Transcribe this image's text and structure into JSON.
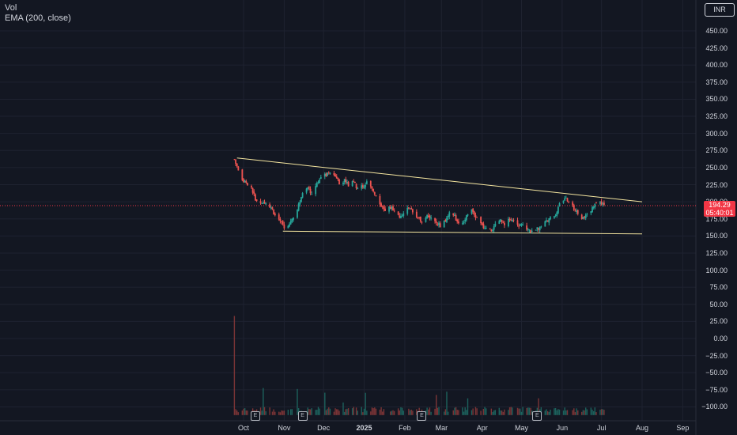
{
  "legend": {
    "volume": "Vol",
    "ema": "EMA (200, close)"
  },
  "currency": "INR",
  "price_badge": {
    "price": "194.29",
    "countdown": "05:40:01"
  },
  "colors": {
    "background": "#131722",
    "up": "#26a69a",
    "down": "#ef5350",
    "trendline": "#f5e6a0",
    "grid": "#1e2230",
    "price_line": "#f23645"
  },
  "earnings_marker": "E",
  "chart_data": {
    "type": "candlestick",
    "title": "",
    "ylim": [
      -112,
      520
    ],
    "y_ticks": [
      "450.00",
      "425.00",
      "400.00",
      "375.00",
      "350.00",
      "325.00",
      "300.00",
      "275.00",
      "250.00",
      "225.00",
      "200.00",
      "175.00",
      "150.00",
      "125.00",
      "100.00",
      "75.00",
      "50.00",
      "25.00",
      "0.00",
      "−25.00",
      "−50.00",
      "−75.00",
      "−100.00"
    ],
    "x_ticks": [
      {
        "label": "Oct",
        "date": "2024-10-01",
        "bold": false
      },
      {
        "label": "Nov",
        "date": "2024-11-01",
        "bold": false
      },
      {
        "label": "Dec",
        "date": "2024-12-01",
        "bold": false
      },
      {
        "label": "2025",
        "date": "2025-01-01",
        "bold": true
      },
      {
        "label": "Feb",
        "date": "2025-02-01",
        "bold": false
      },
      {
        "label": "Mar",
        "date": "2025-03-01",
        "bold": false
      },
      {
        "label": "Apr",
        "date": "2025-04-01",
        "bold": false
      },
      {
        "label": "May",
        "date": "2025-05-01",
        "bold": false
      },
      {
        "label": "Jun",
        "date": "2025-06-01",
        "bold": false
      },
      {
        "label": "Jul",
        "date": "2025-07-01",
        "bold": false
      },
      {
        "label": "Aug",
        "date": "2025-08-01",
        "bold": false
      },
      {
        "label": "Sep",
        "date": "2025-09-01",
        "bold": false
      }
    ],
    "last_price": 194.29,
    "price_path": [
      [
        "2024-09-24",
        262
      ],
      [
        "2024-09-26",
        250
      ],
      [
        "2024-09-30",
        232
      ],
      [
        "2024-10-03",
        228
      ],
      [
        "2024-10-07",
        218
      ],
      [
        "2024-10-10",
        205
      ],
      [
        "2024-10-14",
        195
      ],
      [
        "2024-10-18",
        198
      ],
      [
        "2024-10-22",
        192
      ],
      [
        "2024-10-25",
        180
      ],
      [
        "2024-10-29",
        172
      ],
      [
        "2024-11-01",
        162
      ],
      [
        "2024-11-05",
        168
      ],
      [
        "2024-11-08",
        178
      ],
      [
        "2024-11-12",
        195
      ],
      [
        "2024-11-15",
        210
      ],
      [
        "2024-11-19",
        220
      ],
      [
        "2024-11-22",
        212
      ],
      [
        "2024-11-26",
        228
      ],
      [
        "2024-11-29",
        235
      ],
      [
        "2024-12-03",
        240
      ],
      [
        "2024-12-06",
        245
      ],
      [
        "2024-12-10",
        238
      ],
      [
        "2024-12-13",
        228
      ],
      [
        "2024-12-17",
        232
      ],
      [
        "2024-12-20",
        225
      ],
      [
        "2024-12-24",
        228
      ],
      [
        "2024-12-27",
        220
      ],
      [
        "2024-12-31",
        222
      ],
      [
        "2025-01-03",
        228
      ],
      [
        "2025-01-07",
        218
      ],
      [
        "2025-01-10",
        210
      ],
      [
        "2025-01-14",
        195
      ],
      [
        "2025-01-17",
        185
      ],
      [
        "2025-01-21",
        192
      ],
      [
        "2025-01-24",
        188
      ],
      [
        "2025-01-28",
        180
      ],
      [
        "2025-01-31",
        183
      ],
      [
        "2025-02-04",
        192
      ],
      [
        "2025-02-07",
        185
      ],
      [
        "2025-02-11",
        178
      ],
      [
        "2025-02-14",
        172
      ],
      [
        "2025-02-18",
        182
      ],
      [
        "2025-02-21",
        176
      ],
      [
        "2025-02-25",
        170
      ],
      [
        "2025-02-28",
        165
      ],
      [
        "2025-03-04",
        172
      ],
      [
        "2025-03-07",
        183
      ],
      [
        "2025-03-11",
        178
      ],
      [
        "2025-03-14",
        170
      ],
      [
        "2025-03-18",
        172
      ],
      [
        "2025-03-21",
        182
      ],
      [
        "2025-03-25",
        188
      ],
      [
        "2025-03-28",
        175
      ],
      [
        "2025-04-01",
        165
      ],
      [
        "2025-04-04",
        160
      ],
      [
        "2025-04-08",
        158
      ],
      [
        "2025-04-11",
        165
      ],
      [
        "2025-04-15",
        172
      ],
      [
        "2025-04-18",
        168
      ],
      [
        "2025-04-22",
        175
      ],
      [
        "2025-04-25",
        170
      ],
      [
        "2025-04-29",
        165
      ],
      [
        "2025-05-02",
        168
      ],
      [
        "2025-05-06",
        160
      ],
      [
        "2025-05-09",
        155
      ],
      [
        "2025-05-13",
        160
      ],
      [
        "2025-05-16",
        165
      ],
      [
        "2025-05-20",
        172
      ],
      [
        "2025-05-23",
        175
      ],
      [
        "2025-05-27",
        182
      ],
      [
        "2025-05-30",
        195
      ],
      [
        "2025-06-03",
        205
      ],
      [
        "2025-06-06",
        200
      ],
      [
        "2025-06-10",
        190
      ],
      [
        "2025-06-13",
        182
      ],
      [
        "2025-06-17",
        175
      ],
      [
        "2025-06-20",
        180
      ],
      [
        "2025-06-24",
        192
      ],
      [
        "2025-06-27",
        196
      ],
      [
        "2025-07-01",
        198
      ],
      [
        "2025-07-03",
        194.29
      ]
    ],
    "trendlines": [
      {
        "name": "upper",
        "from": [
          "2024-09-26",
          264
        ],
        "to": [
          "2025-08-01",
          200
        ]
      },
      {
        "name": "lower",
        "from": [
          "2024-10-31",
          157
        ],
        "to": [
          "2025-08-01",
          153
        ]
      }
    ],
    "volume_spike": {
      "date": "2024-09-24",
      "value": 33
    },
    "earnings_dates": [
      "2024-10-10",
      "2024-11-15",
      "2025-02-14",
      "2025-05-13"
    ]
  }
}
